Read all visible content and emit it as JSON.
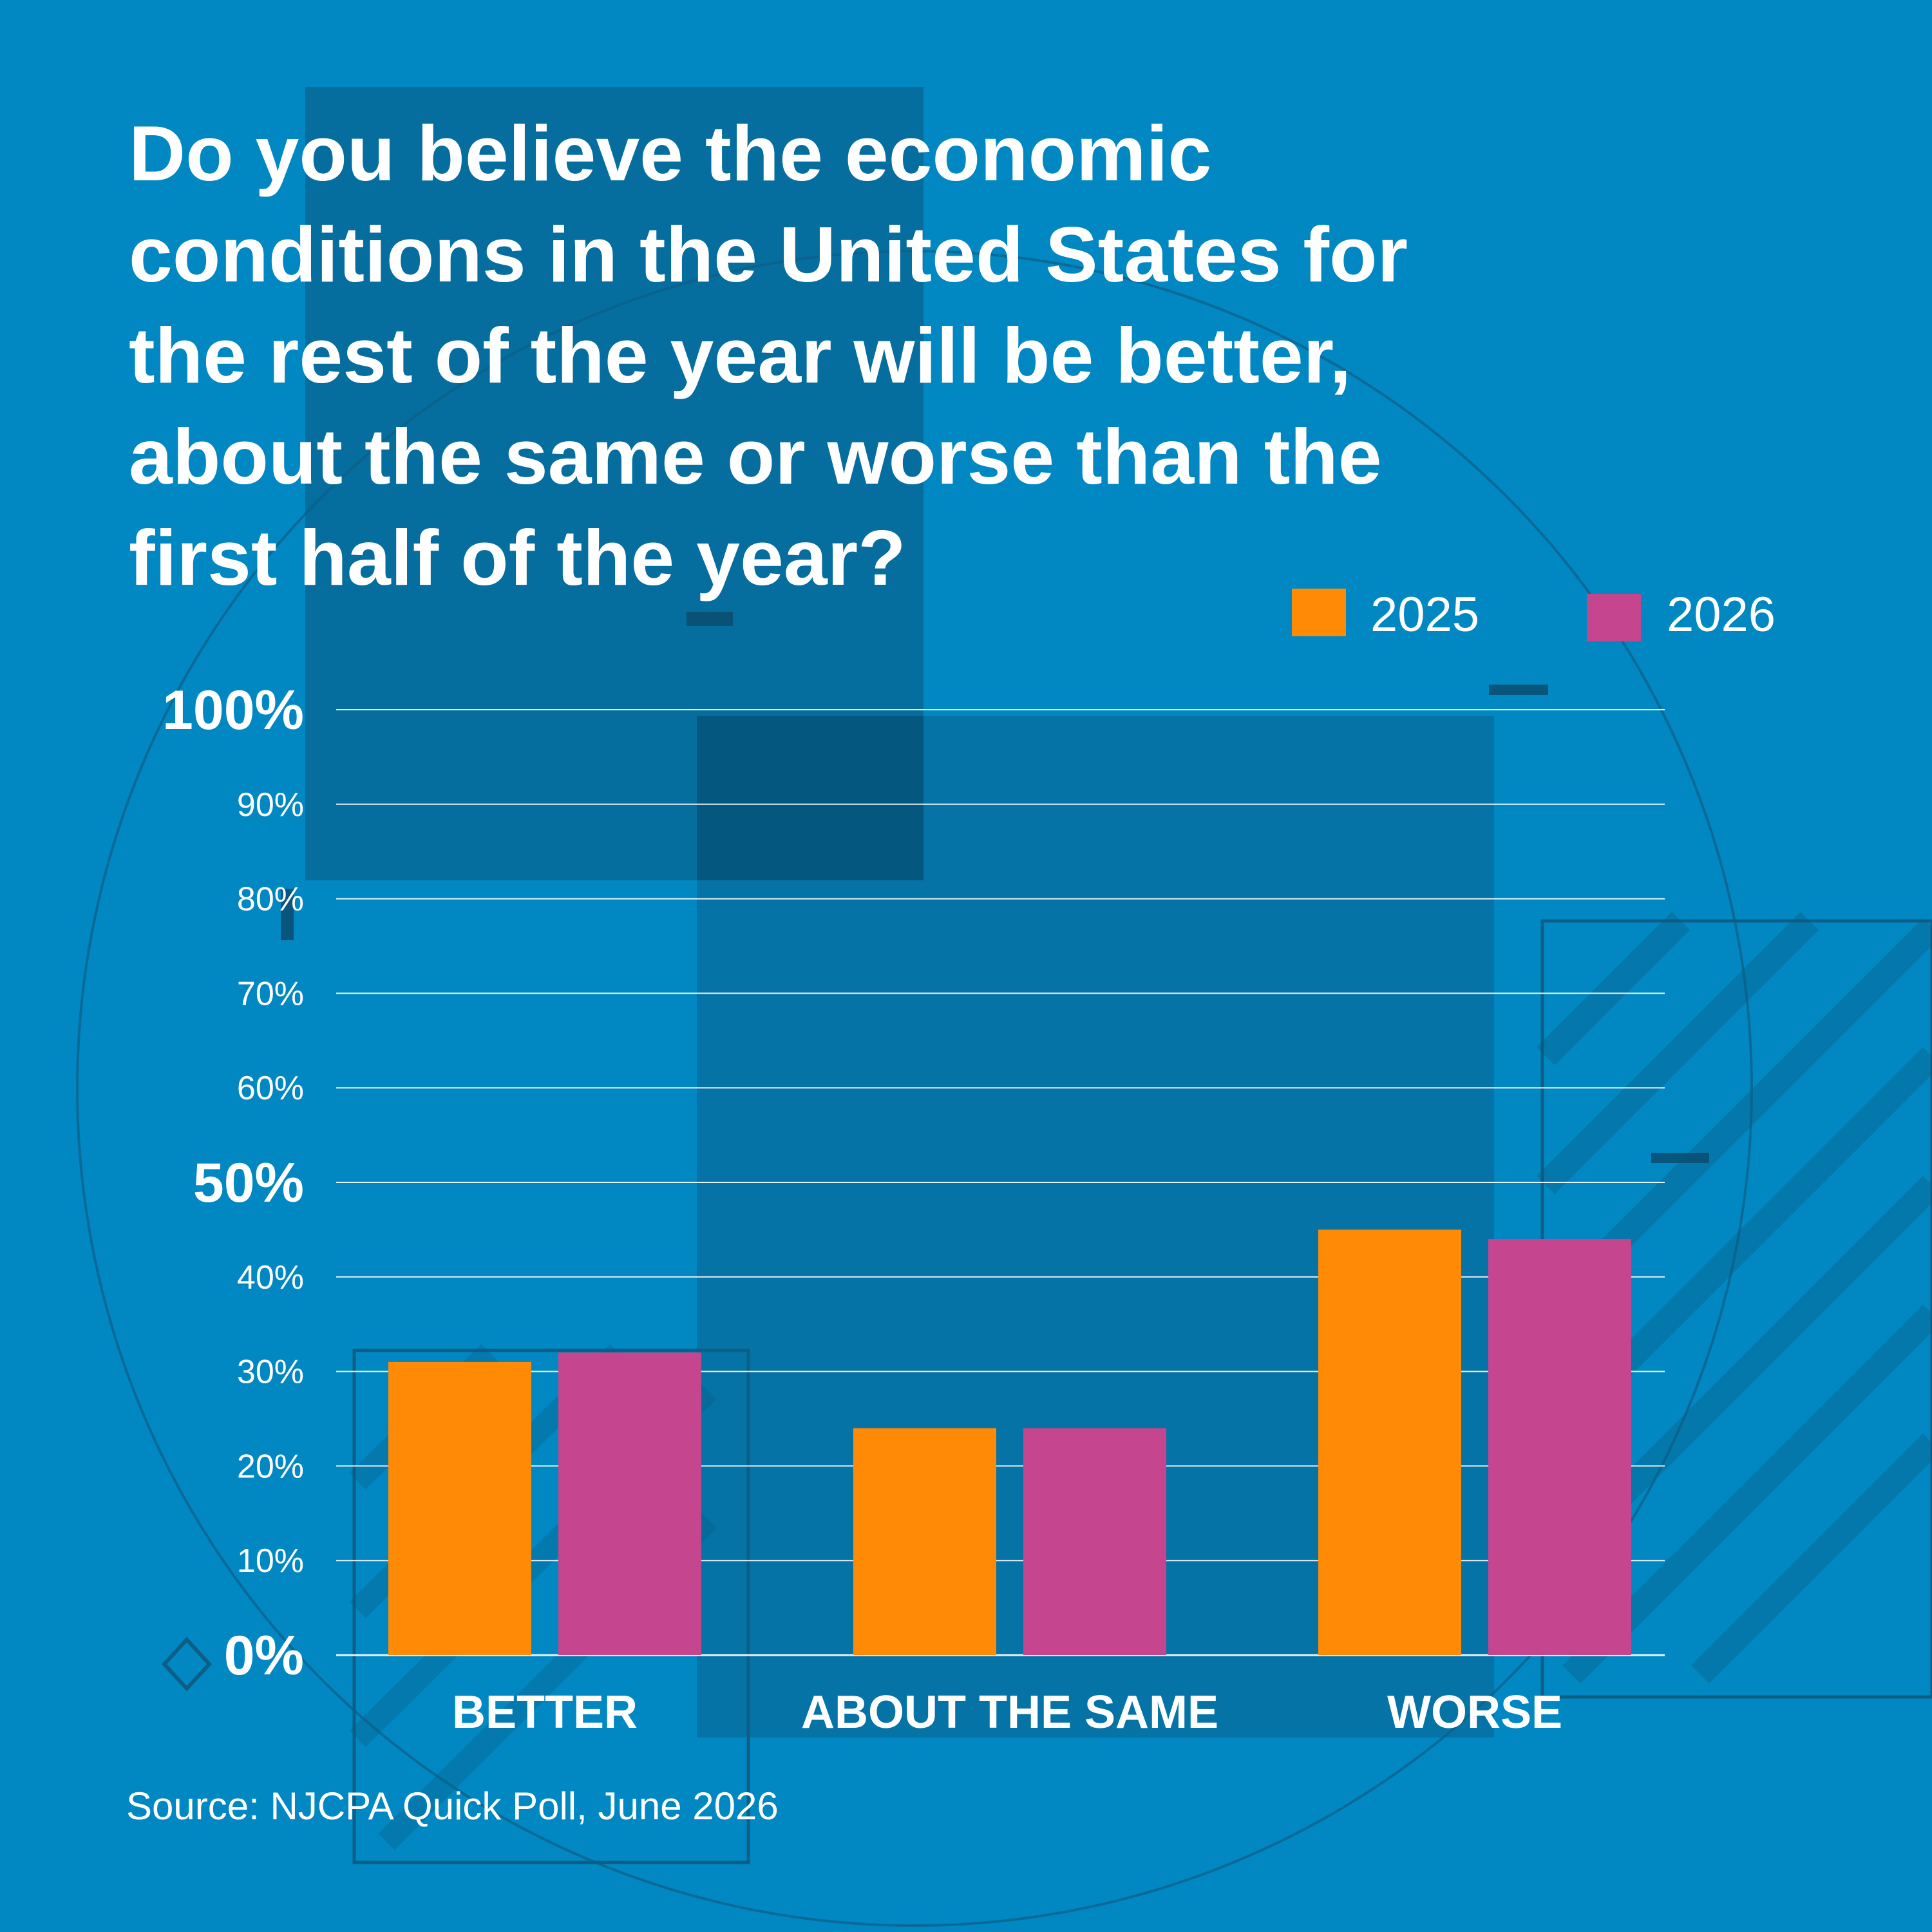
{
  "colors": {
    "background": "#0188c2",
    "series_2025": "#ff8a05",
    "series_2026": "#c5458f",
    "gridline": "#ffffff",
    "text": "#ffffff"
  },
  "title_lines": [
    "Do you believe the economic",
    "conditions in the United States for",
    "the rest of the year will be better,",
    "about the same or worse than the",
    "first half of the year?"
  ],
  "source": "Source: NJCPA Quick Poll, June 2026",
  "chart_data": {
    "type": "bar",
    "title": "Do you believe the economic conditions in the United States for the rest of the year will be better, about the same or worse than the first half of the year?",
    "categories": [
      "BETTER",
      "ABOUT THE SAME",
      "WORSE"
    ],
    "series": [
      {
        "name": "2025",
        "color": "#ff8a05",
        "values": [
          31,
          24,
          45
        ]
      },
      {
        "name": "2026",
        "color": "#c5458f",
        "values": [
          32,
          24,
          44
        ]
      }
    ],
    "ylim": [
      0,
      100
    ],
    "yticks": [
      {
        "value": 0,
        "label": "0%",
        "major": true
      },
      {
        "value": 10,
        "label": "10%",
        "major": false
      },
      {
        "value": 20,
        "label": "20%",
        "major": false
      },
      {
        "value": 30,
        "label": "30%",
        "major": false
      },
      {
        "value": 40,
        "label": "40%",
        "major": false
      },
      {
        "value": 50,
        "label": "50%",
        "major": true
      },
      {
        "value": 60,
        "label": "60%",
        "major": false
      },
      {
        "value": 70,
        "label": "70%",
        "major": false
      },
      {
        "value": 80,
        "label": "80%",
        "major": false
      },
      {
        "value": 90,
        "label": "90%",
        "major": false
      },
      {
        "value": 100,
        "label": "100%",
        "major": true
      }
    ],
    "grid": true,
    "legend_position": "top-right",
    "xlabel": "",
    "ylabel": ""
  }
}
